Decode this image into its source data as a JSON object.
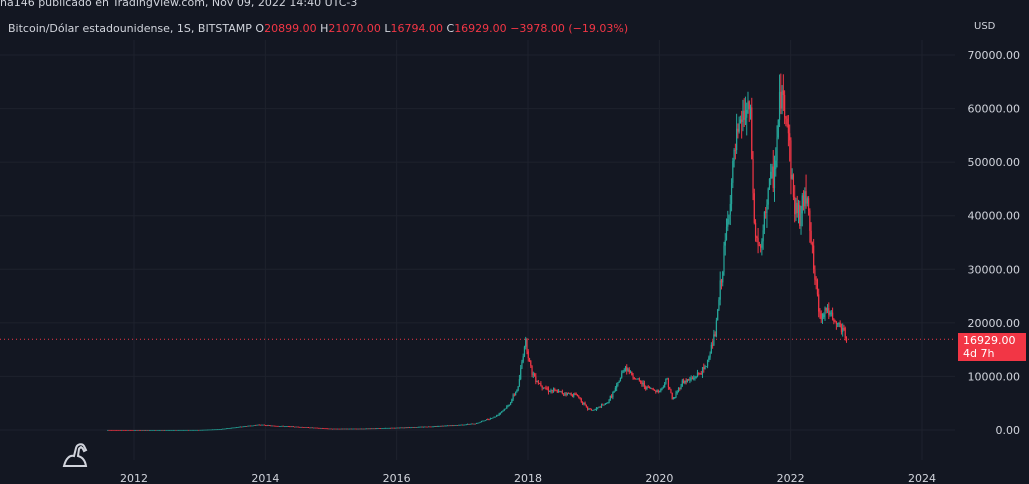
{
  "header": {
    "attribution": "na146 publicado en TradingView.com, Nov 09, 2022 14:40 UTC-3"
  },
  "legend": {
    "symbol": "Bitcoin/Dólar estadounidense, 1S, BITSTAMP",
    "open_key": "O",
    "open": "20899.00",
    "high_key": "H",
    "high": "21070.00",
    "low_key": "L",
    "low": "16794.00",
    "close_key": "C",
    "close": "16929.00",
    "change": "−3978.00 (−19.03%)"
  },
  "axis": {
    "currency": "USD"
  },
  "price_label": {
    "price": "16929.00",
    "countdown": "4d 7h"
  },
  "colors": {
    "background": "#131722",
    "up": "#26a69a",
    "down": "#f23645",
    "grid": "#1e222d",
    "text": "#d1d4dc"
  },
  "chart_data": {
    "type": "line",
    "title": "Bitcoin/Dólar estadounidense, 1S, BITSTAMP",
    "xlabel": "",
    "ylabel": "USD",
    "x_ticks": [
      "2012",
      "2014",
      "2016",
      "2018",
      "2020",
      "2022",
      "2024"
    ],
    "y_ticks": [
      "0.00",
      "10000.00",
      "20000.00",
      "30000.00",
      "40000.00",
      "50000.00",
      "60000.00",
      "70000.00"
    ],
    "xlim": [
      2011.4,
      2024.6
    ],
    "ylim": [
      -2000,
      75000
    ],
    "current_price_line": 16929,
    "grid": true,
    "series": [
      {
        "x": [
          2011.6,
          2012.0,
          2012.5,
          2013.0,
          2013.3,
          2013.9,
          2014.1,
          2014.5,
          2015.0,
          2015.5,
          2016.0,
          2016.5,
          2016.9,
          2017.2,
          2017.5,
          2017.7,
          2017.85,
          2017.96,
          2018.05,
          2018.15,
          2018.3,
          2018.5,
          2018.75,
          2018.9,
          2019.0,
          2019.2,
          2019.35,
          2019.48,
          2019.6,
          2019.8,
          2020.0,
          2020.12,
          2020.2,
          2020.35,
          2020.5,
          2020.7,
          2020.85,
          2020.95,
          2021.05,
          2021.15,
          2021.25,
          2021.38,
          2021.45,
          2021.55,
          2021.65,
          2021.75,
          2021.85,
          2021.95,
          2022.05,
          2022.15,
          2022.25,
          2022.35,
          2022.45,
          2022.55,
          2022.65,
          2022.75,
          2022.86
        ],
        "y": [
          10,
          5,
          7,
          20,
          150,
          1000,
          800,
          600,
          250,
          260,
          430,
          650,
          900,
          1200,
          2500,
          4500,
          8000,
          17000,
          11000,
          9000,
          7500,
          7000,
          6500,
          4000,
          3700,
          5000,
          8000,
          12000,
          10000,
          8000,
          7200,
          9500,
          5500,
          9000,
          9500,
          11500,
          18000,
          29000,
          40000,
          52000,
          58000,
          60000,
          37000,
          33000,
          45000,
          48000,
          63000,
          58000,
          42000,
          40000,
          45000,
          30000,
          21000,
          23000,
          20000,
          19500,
          16929
        ]
      }
    ]
  }
}
